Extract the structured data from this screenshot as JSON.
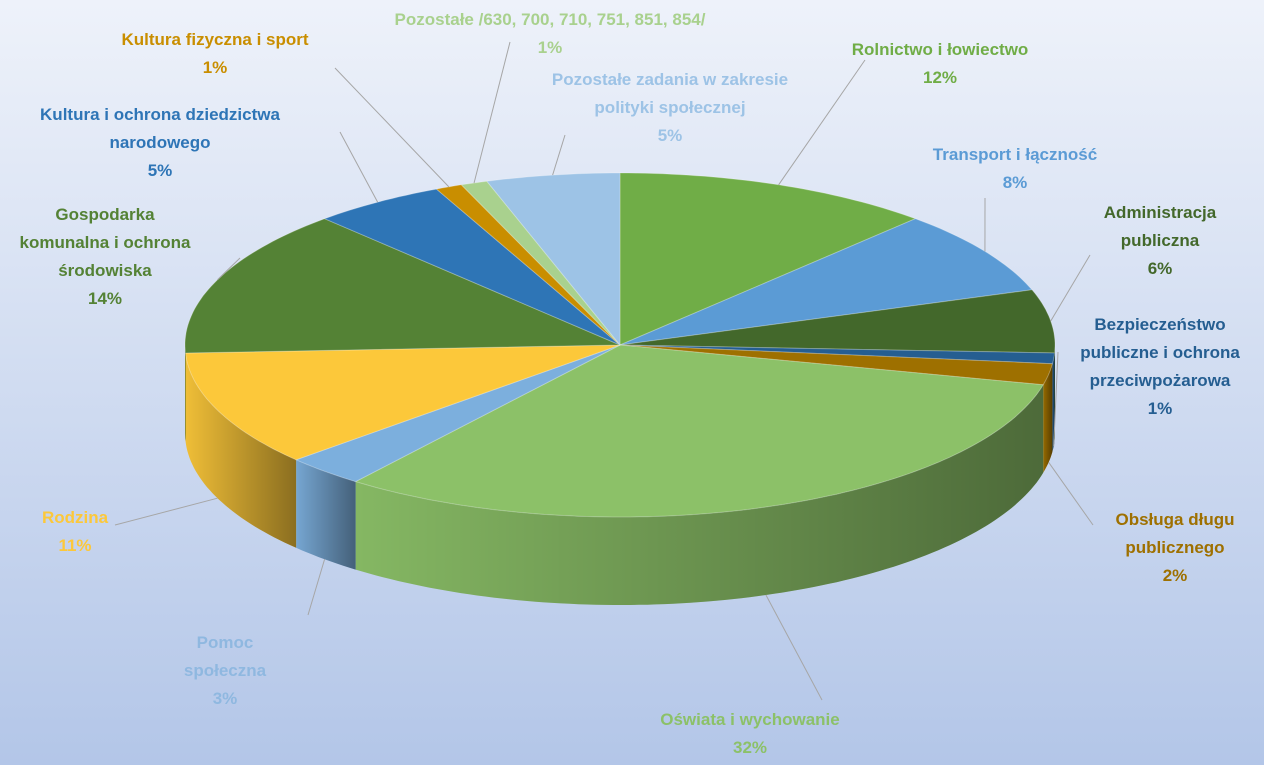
{
  "chart_data": {
    "type": "pie",
    "categories": [
      "Rolnictwo i łowiectwo",
      "Transport i łączność",
      "Administracja publiczna",
      "Bezpieczeństwo publiczne i ochrona przeciwpożarowa",
      "Obsługa długu publicznego",
      "Oświata i wychowanie",
      "Pomoc społeczna",
      "Rodzina",
      "Gospodarka komunalna i ochrona środowiska",
      "Kultura i ochrona dziedzictwa narodowego",
      "Kultura fizyczna i sport",
      "Pozostałe /630, 700, 710, 751, 851, 854/",
      "Pozostałe zadania w zakresie polityki społecznej"
    ],
    "values": [
      12,
      8,
      6,
      1,
      2,
      32,
      3,
      11,
      14,
      5,
      1,
      1,
      5
    ],
    "value_labels": [
      "12%",
      "8%",
      "6%",
      "1%",
      "2%",
      "32%",
      "3%",
      "11%",
      "14%",
      "5%",
      "1%",
      "1%",
      "5%"
    ],
    "colors": [
      "#70ad47",
      "#5b9bd5",
      "#43682b",
      "#255e91",
      "#9e7000",
      "#8cc168",
      "#7cafdd",
      "#fcc83a",
      "#548235",
      "#2e75b6",
      "#c98e00",
      "#a9d18e",
      "#9dc3e6"
    ]
  }
}
